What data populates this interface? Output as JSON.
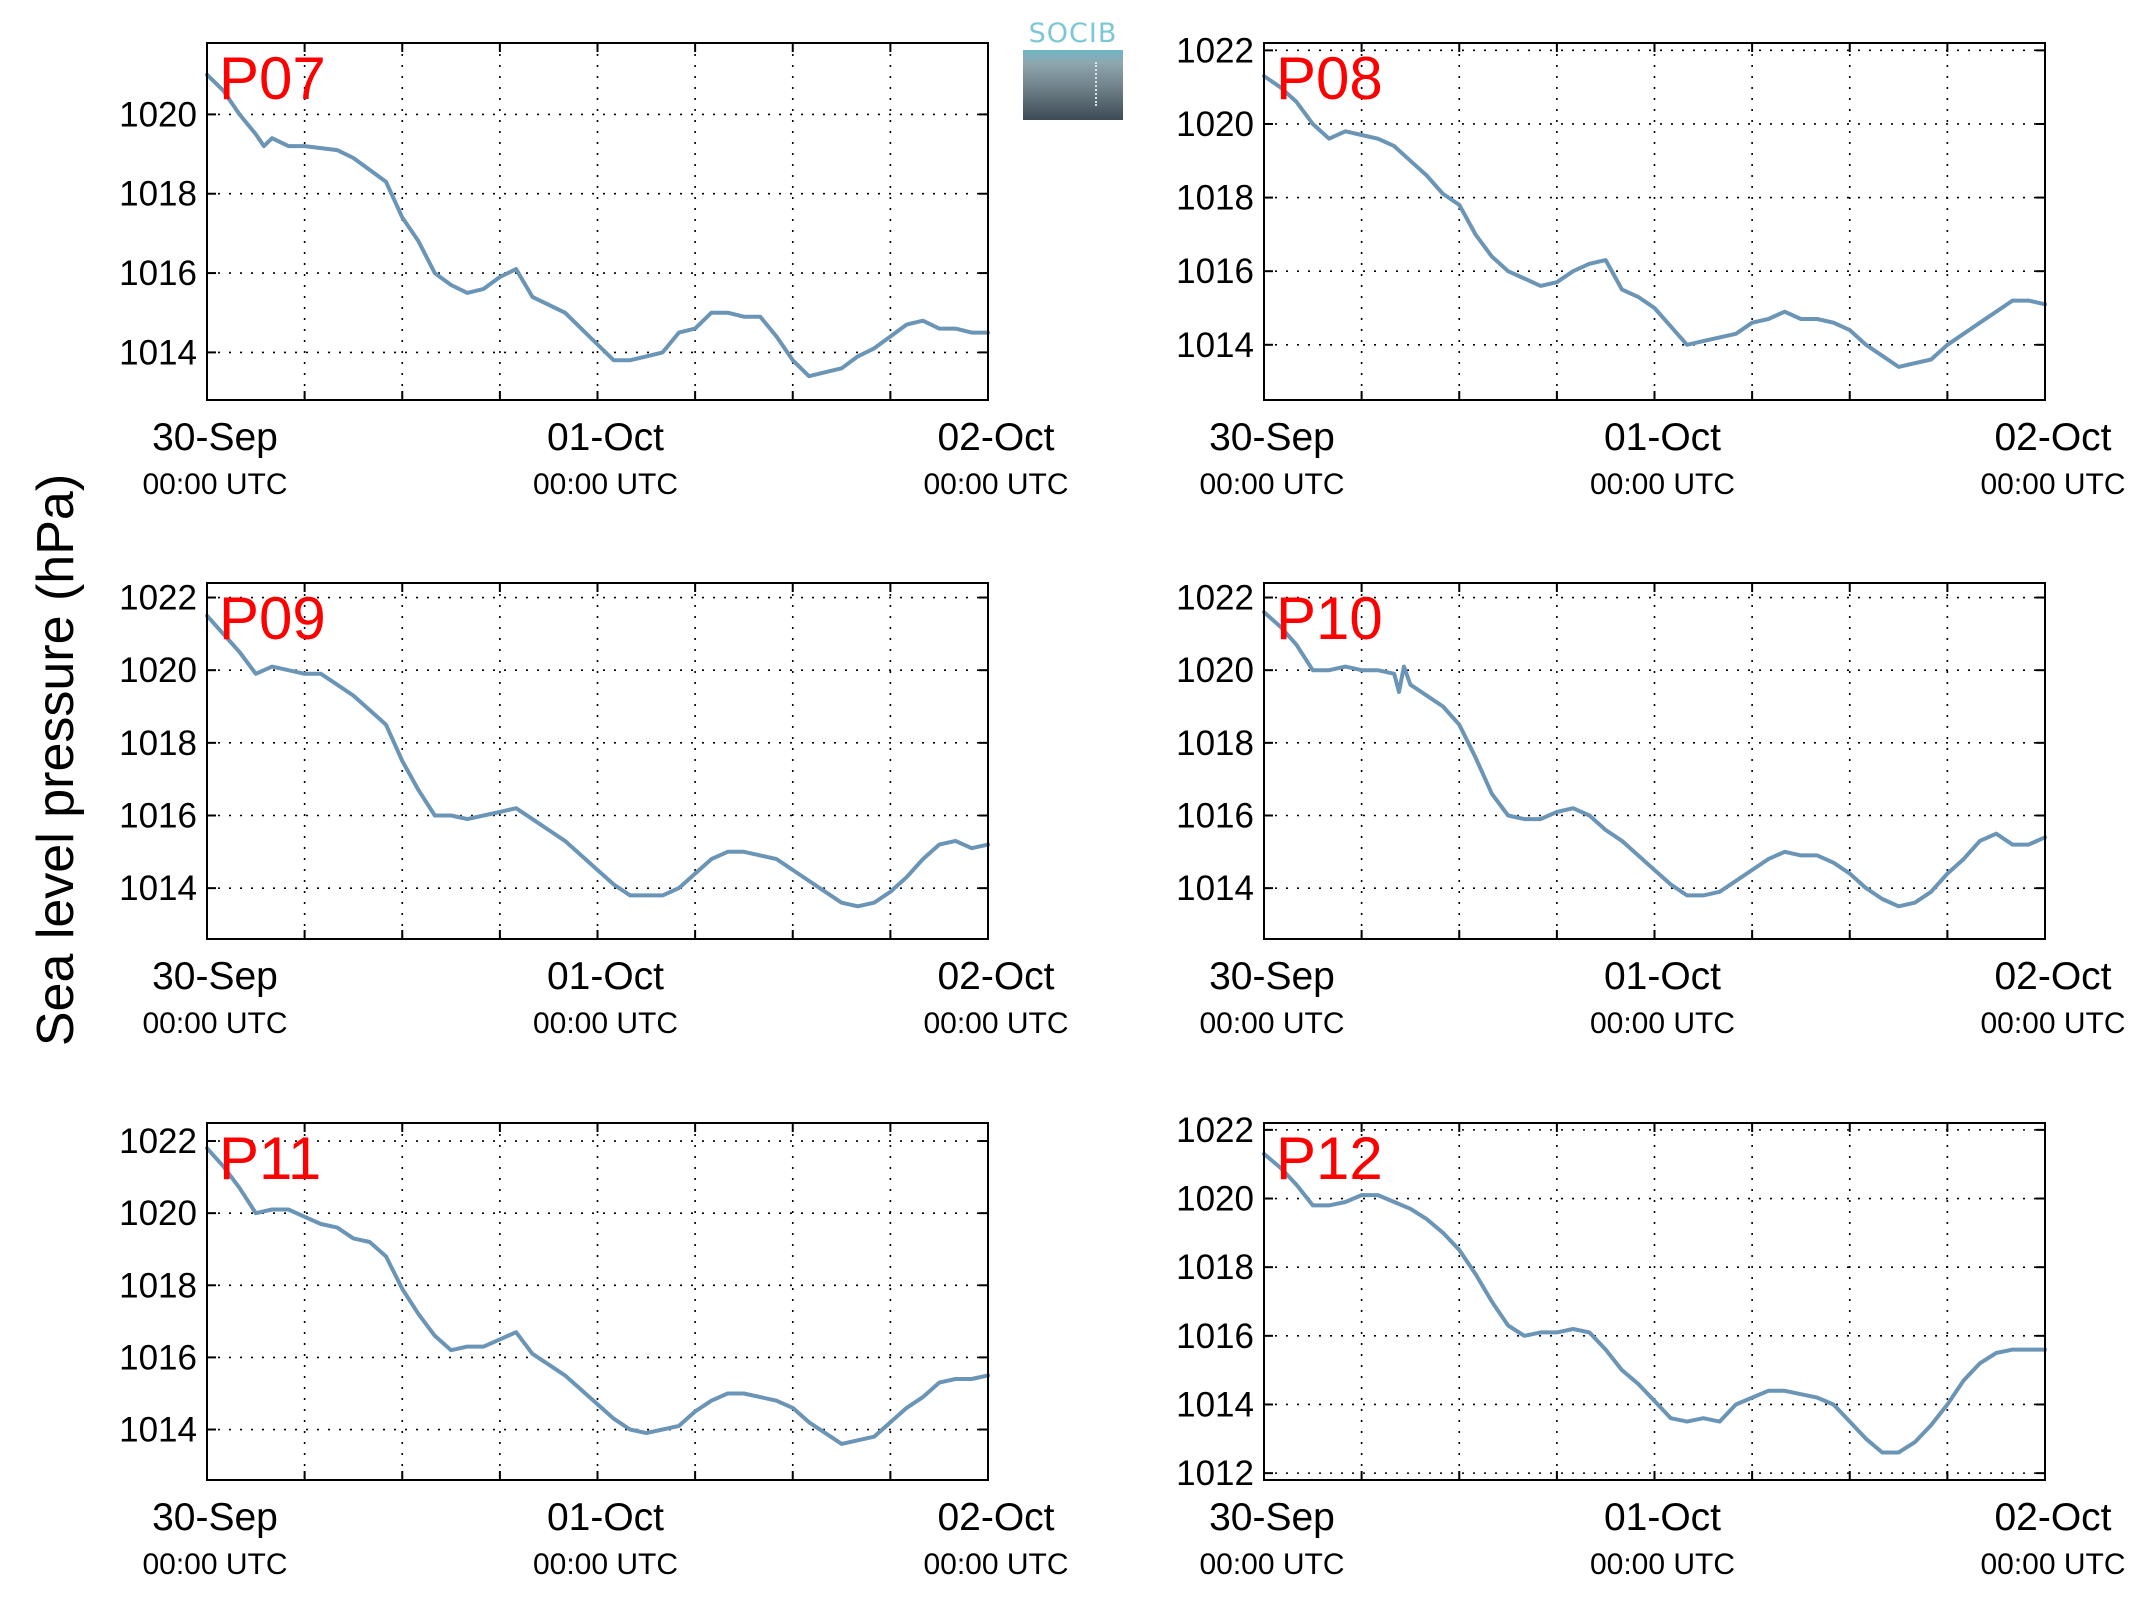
{
  "figure": {
    "ylabel": "Sea level pressure (hPa)",
    "logo_text": "SOCIB",
    "line_color": "#6b95b6",
    "label_color": "#ff0000"
  },
  "chart_data": [
    {
      "type": "line",
      "title": "P07",
      "x_unit": "hours since 30-Sep 00:00 UTC",
      "xlim": [
        0,
        48
      ],
      "ylim": [
        1012.8,
        1021.8
      ],
      "yticks": [
        1014,
        1016,
        1018,
        1020
      ],
      "xticks": [
        {
          "x": 0,
          "line1": "30-Sep",
          "line2": "00:00 UTC"
        },
        {
          "x": 24,
          "line1": "01-Oct",
          "line2": "00:00 UTC"
        },
        {
          "x": 48,
          "line1": "02-Oct",
          "line2": "00:00 UTC"
        }
      ],
      "grid": true,
      "series": [
        {
          "x": [
            0,
            1,
            2,
            3,
            3.5,
            4,
            5,
            6,
            8,
            9,
            10,
            11,
            12,
            13,
            14,
            15,
            16,
            17,
            18,
            19,
            20,
            21,
            22,
            23,
            24,
            25,
            26,
            27,
            28,
            29,
            30,
            31,
            32,
            33,
            34,
            35,
            36,
            37,
            38,
            39,
            40,
            41,
            42,
            43,
            44,
            45,
            46,
            47,
            48
          ],
          "y": [
            1021.0,
            1020.6,
            1020.0,
            1019.5,
            1019.2,
            1019.4,
            1019.2,
            1019.2,
            1019.1,
            1018.9,
            1018.6,
            1018.3,
            1017.4,
            1016.8,
            1016.0,
            1015.7,
            1015.5,
            1015.6,
            1015.9,
            1016.1,
            1015.4,
            1015.2,
            1015.0,
            1014.6,
            1014.2,
            1013.8,
            1013.8,
            1013.9,
            1014.0,
            1014.5,
            1014.6,
            1015.0,
            1015.0,
            1014.9,
            1014.9,
            1014.4,
            1013.8,
            1013.4,
            1013.5,
            1013.6,
            1013.9,
            1014.1,
            1014.4,
            1014.7,
            1014.8,
            1014.6,
            1014.6,
            1014.5,
            1014.5
          ]
        }
      ]
    },
    {
      "type": "line",
      "title": "P08",
      "x_unit": "hours since 30-Sep 00:00 UTC",
      "xlim": [
        0,
        48
      ],
      "ylim": [
        1012.5,
        1022.2
      ],
      "yticks": [
        1014,
        1016,
        1018,
        1020,
        1022
      ],
      "xticks": [
        {
          "x": 0,
          "line1": "30-Sep",
          "line2": "00:00 UTC"
        },
        {
          "x": 24,
          "line1": "01-Oct",
          "line2": "00:00 UTC"
        },
        {
          "x": 48,
          "line1": "02-Oct",
          "line2": "00:00 UTC"
        }
      ],
      "grid": true,
      "series": [
        {
          "x": [
            0,
            1,
            2,
            3,
            4,
            5,
            6,
            7,
            8,
            9,
            10,
            11,
            12,
            13,
            14,
            15,
            16,
            17,
            18,
            19,
            20,
            21,
            22,
            23,
            24,
            25,
            26,
            27,
            28,
            29,
            30,
            31,
            32,
            33,
            34,
            35,
            36,
            37,
            38,
            39,
            40,
            41,
            42,
            43,
            44,
            45,
            46,
            47,
            48
          ],
          "y": [
            1021.3,
            1021.0,
            1020.6,
            1020.0,
            1019.6,
            1019.8,
            1019.7,
            1019.6,
            1019.4,
            1019.0,
            1018.6,
            1018.1,
            1017.8,
            1017.0,
            1016.4,
            1016.0,
            1015.8,
            1015.6,
            1015.7,
            1016.0,
            1016.2,
            1016.3,
            1015.5,
            1015.3,
            1015.0,
            1014.5,
            1014.0,
            1014.1,
            1014.2,
            1014.3,
            1014.6,
            1014.7,
            1014.9,
            1014.7,
            1014.7,
            1014.6,
            1014.4,
            1014.0,
            1013.7,
            1013.4,
            1013.5,
            1013.6,
            1014.0,
            1014.3,
            1014.6,
            1014.9,
            1015.2,
            1015.2,
            1015.1
          ]
        }
      ]
    },
    {
      "type": "line",
      "title": "P09",
      "x_unit": "hours since 30-Sep 00:00 UTC",
      "xlim": [
        0,
        48
      ],
      "ylim": [
        1012.6,
        1022.4
      ],
      "yticks": [
        1014,
        1016,
        1018,
        1020,
        1022
      ],
      "xticks": [
        {
          "x": 0,
          "line1": "30-Sep",
          "line2": "00:00 UTC"
        },
        {
          "x": 24,
          "line1": "01-Oct",
          "line2": "00:00 UTC"
        },
        {
          "x": 48,
          "line1": "02-Oct",
          "line2": "00:00 UTC"
        }
      ],
      "grid": true,
      "series": [
        {
          "x": [
            0,
            1,
            2,
            3,
            4,
            5,
            6,
            7,
            8,
            9,
            10,
            11,
            12,
            13,
            14,
            15,
            16,
            17,
            18,
            19,
            20,
            21,
            22,
            23,
            24,
            25,
            26,
            27,
            28,
            29,
            30,
            31,
            32,
            33,
            34,
            35,
            36,
            37,
            38,
            39,
            40,
            41,
            42,
            43,
            44,
            45,
            46,
            47,
            48
          ],
          "y": [
            1021.5,
            1021.0,
            1020.5,
            1019.9,
            1020.1,
            1020.0,
            1019.9,
            1019.9,
            1019.6,
            1019.3,
            1018.9,
            1018.5,
            1017.5,
            1016.7,
            1016.0,
            1016.0,
            1015.9,
            1016.0,
            1016.1,
            1016.2,
            1015.9,
            1015.6,
            1015.3,
            1014.9,
            1014.5,
            1014.1,
            1013.8,
            1013.8,
            1013.8,
            1014.0,
            1014.4,
            1014.8,
            1015.0,
            1015.0,
            1014.9,
            1014.8,
            1014.5,
            1014.2,
            1013.9,
            1013.6,
            1013.5,
            1013.6,
            1013.9,
            1014.3,
            1014.8,
            1015.2,
            1015.3,
            1015.1,
            1015.2
          ]
        }
      ]
    },
    {
      "type": "line",
      "title": "P10",
      "x_unit": "hours since 30-Sep 00:00 UTC",
      "xlim": [
        0,
        48
      ],
      "ylim": [
        1012.6,
        1022.4
      ],
      "yticks": [
        1014,
        1016,
        1018,
        1020,
        1022
      ],
      "xticks": [
        {
          "x": 0,
          "line1": "30-Sep",
          "line2": "00:00 UTC"
        },
        {
          "x": 24,
          "line1": "01-Oct",
          "line2": "00:00 UTC"
        },
        {
          "x": 48,
          "line1": "02-Oct",
          "line2": "00:00 UTC"
        }
      ],
      "grid": true,
      "series": [
        {
          "x": [
            0,
            1,
            2,
            3,
            4,
            5,
            6,
            7,
            8,
            8.3,
            8.6,
            9,
            10,
            11,
            12,
            13,
            14,
            15,
            16,
            17,
            18,
            19,
            20,
            21,
            22,
            23,
            24,
            25,
            26,
            27,
            28,
            29,
            30,
            31,
            32,
            33,
            34,
            35,
            36,
            37,
            38,
            39,
            40,
            41,
            42,
            43,
            44,
            45,
            46,
            47,
            48
          ],
          "y": [
            1021.6,
            1021.2,
            1020.7,
            1020.0,
            1020.0,
            1020.1,
            1020.0,
            1020.0,
            1019.9,
            1019.4,
            1020.1,
            1019.6,
            1019.3,
            1019.0,
            1018.5,
            1017.6,
            1016.6,
            1016.0,
            1015.9,
            1015.9,
            1016.1,
            1016.2,
            1016.0,
            1015.6,
            1015.3,
            1014.9,
            1014.5,
            1014.1,
            1013.8,
            1013.8,
            1013.9,
            1014.2,
            1014.5,
            1014.8,
            1015.0,
            1014.9,
            1014.9,
            1014.7,
            1014.4,
            1014.0,
            1013.7,
            1013.5,
            1013.6,
            1013.9,
            1014.4,
            1014.8,
            1015.3,
            1015.5,
            1015.2,
            1015.2,
            1015.4
          ]
        }
      ]
    },
    {
      "type": "line",
      "title": "P11",
      "x_unit": "hours since 30-Sep 00:00 UTC",
      "xlim": [
        0,
        48
      ],
      "ylim": [
        1012.6,
        1022.5
      ],
      "yticks": [
        1014,
        1016,
        1018,
        1020,
        1022
      ],
      "xticks": [
        {
          "x": 0,
          "line1": "30-Sep",
          "line2": "00:00 UTC"
        },
        {
          "x": 24,
          "line1": "01-Oct",
          "line2": "00:00 UTC"
        },
        {
          "x": 48,
          "line1": "02-Oct",
          "line2": "00:00 UTC"
        }
      ],
      "grid": true,
      "series": [
        {
          "x": [
            0,
            1,
            2,
            3,
            4,
            5,
            6,
            7,
            8,
            9,
            10,
            11,
            12,
            13,
            14,
            15,
            16,
            17,
            18,
            19,
            20,
            21,
            22,
            23,
            24,
            25,
            26,
            27,
            28,
            29,
            30,
            31,
            32,
            33,
            34,
            35,
            36,
            37,
            38,
            39,
            40,
            41,
            42,
            43,
            44,
            45,
            46,
            47,
            48
          ],
          "y": [
            1021.8,
            1021.3,
            1020.7,
            1020.0,
            1020.1,
            1020.1,
            1019.9,
            1019.7,
            1019.6,
            1019.3,
            1019.2,
            1018.8,
            1017.9,
            1017.2,
            1016.6,
            1016.2,
            1016.3,
            1016.3,
            1016.5,
            1016.7,
            1016.1,
            1015.8,
            1015.5,
            1015.1,
            1014.7,
            1014.3,
            1014.0,
            1013.9,
            1014.0,
            1014.1,
            1014.5,
            1014.8,
            1015.0,
            1015.0,
            1014.9,
            1014.8,
            1014.6,
            1014.2,
            1013.9,
            1013.6,
            1013.7,
            1013.8,
            1014.2,
            1014.6,
            1014.9,
            1015.3,
            1015.4,
            1015.4,
            1015.5
          ]
        }
      ]
    },
    {
      "type": "line",
      "title": "P12",
      "x_unit": "hours since 30-Sep 00:00 UTC",
      "xlim": [
        0,
        48
      ],
      "ylim": [
        1011.8,
        1022.2
      ],
      "yticks": [
        1012,
        1014,
        1016,
        1018,
        1020,
        1022
      ],
      "xticks": [
        {
          "x": 0,
          "line1": "30-Sep",
          "line2": "00:00 UTC"
        },
        {
          "x": 24,
          "line1": "01-Oct",
          "line2": "00:00 UTC"
        },
        {
          "x": 48,
          "line1": "02-Oct",
          "line2": "00:00 UTC"
        }
      ],
      "grid": true,
      "series": [
        {
          "x": [
            0,
            1,
            2,
            3,
            4,
            5,
            6,
            7,
            8,
            9,
            10,
            11,
            12,
            13,
            14,
            15,
            16,
            17,
            18,
            19,
            20,
            21,
            22,
            23,
            24,
            25,
            26,
            27,
            28,
            29,
            30,
            31,
            32,
            33,
            34,
            35,
            36,
            37,
            38,
            39,
            40,
            41,
            42,
            43,
            44,
            45,
            46,
            47,
            48
          ],
          "y": [
            1021.3,
            1020.9,
            1020.4,
            1019.8,
            1019.8,
            1019.9,
            1020.1,
            1020.1,
            1019.9,
            1019.7,
            1019.4,
            1019.0,
            1018.5,
            1017.8,
            1017.0,
            1016.3,
            1016.0,
            1016.1,
            1016.1,
            1016.2,
            1016.1,
            1015.6,
            1015.0,
            1014.6,
            1014.1,
            1013.6,
            1013.5,
            1013.6,
            1013.5,
            1014.0,
            1014.2,
            1014.4,
            1014.4,
            1014.3,
            1014.2,
            1014.0,
            1013.5,
            1013.0,
            1012.6,
            1012.6,
            1012.9,
            1013.4,
            1014.0,
            1014.7,
            1015.2,
            1015.5,
            1015.6,
            1015.6,
            1015.6
          ]
        }
      ]
    }
  ]
}
